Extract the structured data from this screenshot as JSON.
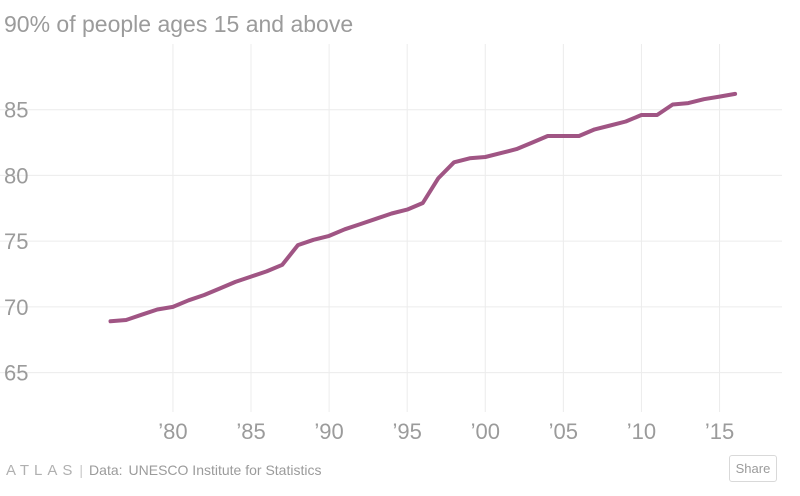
{
  "chart_data": {
    "type": "line",
    "title": "90% of people ages 15 and above",
    "xlabel": "",
    "ylabel": "",
    "x": [
      1976,
      1977,
      1978,
      1979,
      1980,
      1981,
      1982,
      1983,
      1984,
      1985,
      1986,
      1987,
      1988,
      1989,
      1990,
      1991,
      1992,
      1993,
      1994,
      1995,
      1996,
      1997,
      1998,
      1999,
      2000,
      2001,
      2002,
      2003,
      2004,
      2005,
      2006,
      2007,
      2008,
      2009,
      2010,
      2011,
      2012,
      2013,
      2014,
      2015,
      2016
    ],
    "series": [
      {
        "color": "#a05584",
        "values": [
          68.9,
          69.0,
          69.4,
          69.8,
          70.0,
          70.5,
          70.9,
          71.4,
          71.9,
          72.3,
          72.7,
          73.2,
          74.7,
          75.1,
          75.4,
          75.9,
          76.3,
          76.7,
          77.1,
          77.4,
          77.9,
          79.8,
          81.0,
          81.3,
          81.4,
          81.7,
          82.0,
          82.5,
          83.0,
          83.0,
          83.0,
          83.5,
          83.8,
          84.1,
          84.6,
          84.6,
          85.4,
          85.5,
          85.8,
          86.0,
          86.2
        ]
      }
    ],
    "xlim": [
      1972,
      2019
    ],
    "ylim": [
      62,
      90
    ],
    "yticks": [
      65,
      70,
      75,
      80,
      85
    ],
    "ytick_labels": [
      "65",
      "70",
      "75",
      "80",
      "85"
    ],
    "xticks": [
      1980,
      1985,
      1990,
      1995,
      2000,
      2005,
      2010,
      2015
    ],
    "xtick_labels": [
      "’80",
      "’85",
      "’90",
      "’95",
      "’00",
      "’05",
      "’10",
      "’15"
    ],
    "grid": true,
    "legend": "none"
  },
  "footer": {
    "brand": "ATLAS",
    "separator": "|",
    "source_label": "Data:",
    "source": "UNESCO Institute for Statistics"
  },
  "share_label": "Share",
  "colors": {
    "line": "#a05584",
    "grid": "#ececec",
    "text": "#9b9b9b"
  }
}
